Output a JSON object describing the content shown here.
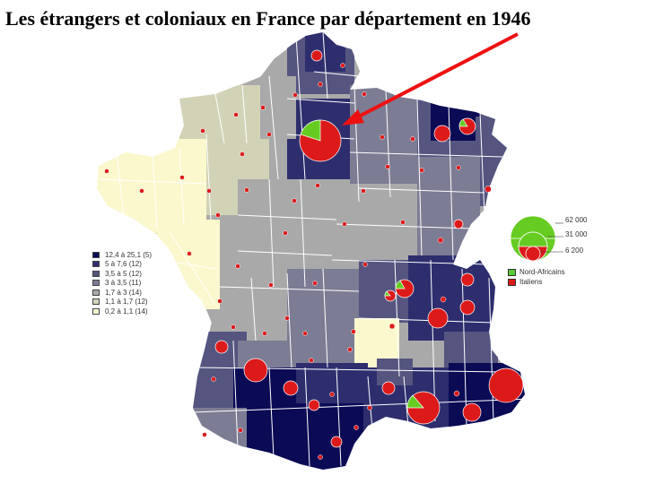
{
  "title": "Les étrangers et coloniaux en France par département en 1946",
  "legend": {
    "classes": [
      {
        "label": "12,4 à 25,1  (5)",
        "color": "#0a0a55"
      },
      {
        "label": "5 à 7,6  (12)",
        "color": "#2e2e6e"
      },
      {
        "label": "3,5 à 5  (12)",
        "color": "#555580"
      },
      {
        "label": "3 à 3,5  (11)",
        "color": "#7c7c94"
      },
      {
        "label": "1,7 à 3  (14)",
        "color": "#a9a9aa"
      },
      {
        "label": "1,1 à 1,7  (12)",
        "color": "#d2d2b6"
      },
      {
        "label": "0,2 à 1,1  (14)",
        "color": "#fbf8cd"
      }
    ],
    "size_labels": [
      "62 000",
      "31 000",
      "6 200"
    ],
    "nationalities": [
      {
        "label": "Nord-Africains",
        "color": "#55cc33"
      },
      {
        "label": "Italiens",
        "color": "#dd1a1a"
      }
    ]
  },
  "colors": {
    "arrow": "#ee1111",
    "pie_red": "#dd1a1a",
    "pie_green": "#66cc22",
    "border": "#ffffff"
  }
}
